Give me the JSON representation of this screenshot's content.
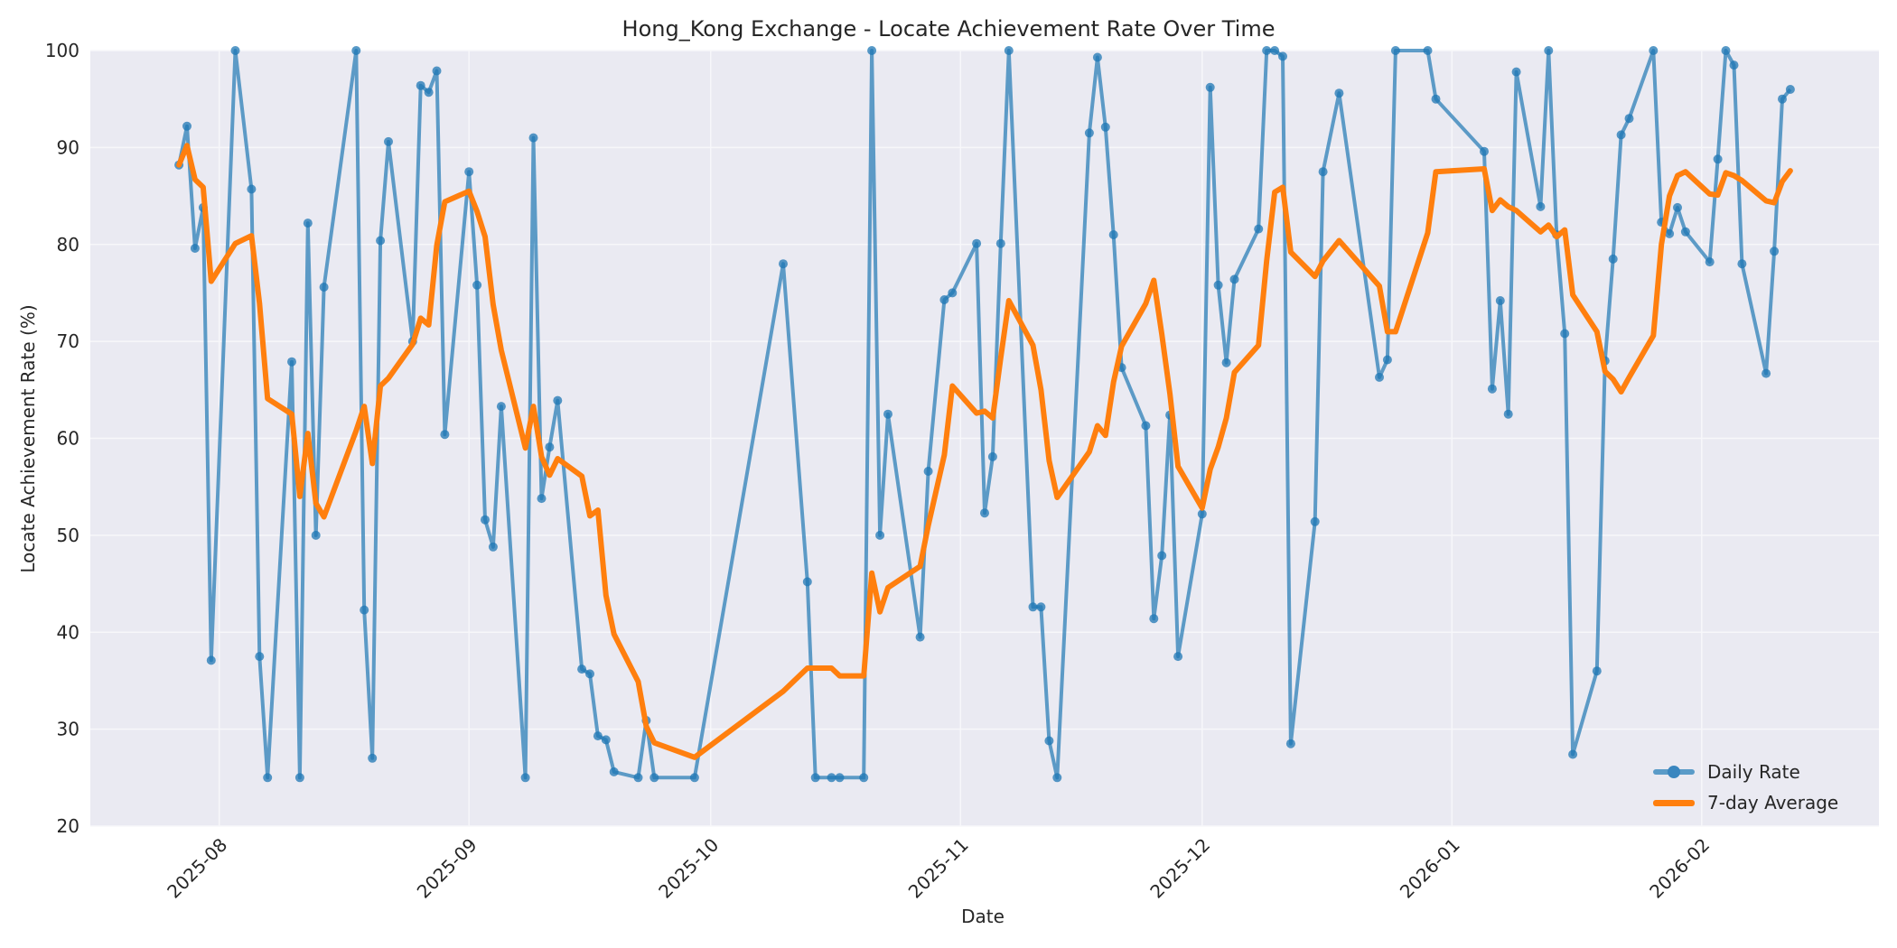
{
  "chart_data": {
    "type": "line",
    "title": "Hong_Kong Exchange - Locate Achievement Rate Over Time",
    "xlabel": "Date",
    "ylabel": "Locate Achievement Rate (%)",
    "ylim": [
      20,
      100
    ],
    "xlim": [
      "2025-07-16",
      "2026-02-23"
    ],
    "grid": true,
    "legend_position": "lower right",
    "x_ticks": [
      "2025-08",
      "2025-09",
      "2025-10",
      "2025-11",
      "2025-12",
      "2026-01",
      "2026-02"
    ],
    "y_ticks": [
      20,
      30,
      40,
      50,
      60,
      70,
      80,
      90,
      100
    ],
    "colors": {
      "daily": "#1f77b4",
      "average": "#ff7f0e",
      "plot_bg": "#eaeaf2",
      "grid": "#f5f5f8"
    },
    "series": [
      {
        "name": "Daily Rate",
        "style": "line+markers",
        "points": [
          [
            "2025-07-27",
            88.2
          ],
          [
            "2025-07-28",
            92.2
          ],
          [
            "2025-07-29",
            79.6
          ],
          [
            "2025-07-30",
            83.8
          ],
          [
            "2025-07-31",
            37.1
          ],
          [
            "2025-08-03",
            100
          ],
          [
            "2025-08-05",
            85.7
          ],
          [
            "2025-08-06",
            37.5
          ],
          [
            "2025-08-07",
            25
          ],
          [
            "2025-08-10",
            67.9
          ],
          [
            "2025-08-11",
            25
          ],
          [
            "2025-08-12",
            82.2
          ],
          [
            "2025-08-13",
            50
          ],
          [
            "2025-08-14",
            75.6
          ],
          [
            "2025-08-18",
            100
          ],
          [
            "2025-08-19",
            42.3
          ],
          [
            "2025-08-20",
            27
          ],
          [
            "2025-08-21",
            80.4
          ],
          [
            "2025-08-22",
            90.6
          ],
          [
            "2025-08-25",
            70
          ],
          [
            "2025-08-26",
            96.4
          ],
          [
            "2025-08-27",
            95.7
          ],
          [
            "2025-08-28",
            97.9
          ],
          [
            "2025-08-29",
            60.4
          ],
          [
            "2025-09-01",
            87.5
          ],
          [
            "2025-09-02",
            75.8
          ],
          [
            "2025-09-03",
            51.6
          ],
          [
            "2025-09-04",
            48.8
          ],
          [
            "2025-09-05",
            63.3
          ],
          [
            "2025-09-08",
            25
          ],
          [
            "2025-09-09",
            91
          ],
          [
            "2025-09-10",
            53.8
          ],
          [
            "2025-09-11",
            59.1
          ],
          [
            "2025-09-12",
            63.9
          ],
          [
            "2025-09-15",
            36.2
          ],
          [
            "2025-09-16",
            35.7
          ],
          [
            "2025-09-17",
            29.3
          ],
          [
            "2025-09-18",
            28.9
          ],
          [
            "2025-09-19",
            25.6
          ],
          [
            "2025-09-22",
            25
          ],
          [
            "2025-09-23",
            30.9
          ],
          [
            "2025-09-24",
            25
          ],
          [
            "2025-09-29",
            25
          ],
          [
            "2025-10-10",
            78
          ],
          [
            "2025-10-13",
            45.2
          ],
          [
            "2025-10-14",
            25
          ],
          [
            "2025-10-16",
            25
          ],
          [
            "2025-10-17",
            25
          ],
          [
            "2025-10-20",
            25
          ],
          [
            "2025-10-21",
            100
          ],
          [
            "2025-10-22",
            50
          ],
          [
            "2025-10-23",
            62.5
          ],
          [
            "2025-10-27",
            39.5
          ],
          [
            "2025-10-28",
            56.6
          ],
          [
            "2025-10-30",
            74.3
          ],
          [
            "2025-10-31",
            75
          ],
          [
            "2025-11-03",
            80.1
          ],
          [
            "2025-11-04",
            52.3
          ],
          [
            "2025-11-05",
            58.1
          ],
          [
            "2025-11-06",
            80.1
          ],
          [
            "2025-11-07",
            100
          ],
          [
            "2025-11-10",
            42.6
          ],
          [
            "2025-11-11",
            42.6
          ],
          [
            "2025-11-12",
            28.8
          ],
          [
            "2025-11-13",
            25
          ],
          [
            "2025-11-17",
            91.5
          ],
          [
            "2025-11-18",
            99.3
          ],
          [
            "2025-11-19",
            92.1
          ],
          [
            "2025-11-20",
            81
          ],
          [
            "2025-11-21",
            67.3
          ],
          [
            "2025-11-24",
            61.3
          ],
          [
            "2025-11-25",
            41.4
          ],
          [
            "2025-11-26",
            47.9
          ],
          [
            "2025-11-27",
            62.4
          ],
          [
            "2025-11-28",
            37.5
          ],
          [
            "2025-12-01",
            52.2
          ],
          [
            "2025-12-02",
            96.2
          ],
          [
            "2025-12-03",
            75.8
          ],
          [
            "2025-12-04",
            67.8
          ],
          [
            "2025-12-05",
            76.4
          ],
          [
            "2025-12-08",
            81.6
          ],
          [
            "2025-12-09",
            100
          ],
          [
            "2025-12-10",
            100
          ],
          [
            "2025-12-11",
            99.4
          ],
          [
            "2025-12-12",
            28.5
          ],
          [
            "2025-12-15",
            51.4
          ],
          [
            "2025-12-16",
            87.5
          ],
          [
            "2025-12-18",
            95.6
          ],
          [
            "2025-12-23",
            66.3
          ],
          [
            "2025-12-24",
            68.1
          ],
          [
            "2025-12-25",
            100
          ],
          [
            "2025-12-29",
            100
          ],
          [
            "2025-12-30",
            95
          ],
          [
            "2026-01-05",
            89.6
          ],
          [
            "2026-01-06",
            65.1
          ],
          [
            "2026-01-07",
            74.2
          ],
          [
            "2026-01-08",
            62.5
          ],
          [
            "2026-01-09",
            97.8
          ],
          [
            "2026-01-12",
            83.9
          ],
          [
            "2026-01-13",
            100
          ],
          [
            "2026-01-14",
            81
          ],
          [
            "2026-01-15",
            70.8
          ],
          [
            "2026-01-16",
            27.4
          ],
          [
            "2026-01-19",
            36
          ],
          [
            "2026-01-20",
            68
          ],
          [
            "2026-01-21",
            78.5
          ],
          [
            "2026-01-22",
            91.3
          ],
          [
            "2026-01-23",
            93
          ],
          [
            "2026-01-26",
            100
          ],
          [
            "2026-01-27",
            82.3
          ],
          [
            "2026-01-28",
            81.1
          ],
          [
            "2026-01-29",
            83.8
          ],
          [
            "2026-01-30",
            81.3
          ],
          [
            "2026-02-02",
            78.2
          ],
          [
            "2026-02-03",
            88.8
          ],
          [
            "2026-02-04",
            100
          ],
          [
            "2026-02-05",
            98.5
          ],
          [
            "2026-02-06",
            78
          ],
          [
            "2026-02-09",
            66.7
          ],
          [
            "2026-02-10",
            79.3
          ],
          [
            "2026-02-11",
            95
          ],
          [
            "2026-02-12",
            96
          ]
        ]
      },
      {
        "name": "7-day Average",
        "style": "line",
        "points": [
          [
            "2025-07-27",
            88.2
          ],
          [
            "2025-07-28",
            90.2
          ],
          [
            "2025-07-29",
            86.7
          ],
          [
            "2025-07-30",
            85.9
          ],
          [
            "2025-07-31",
            76.2
          ],
          [
            "2025-08-03",
            80.1
          ],
          [
            "2025-08-05",
            80.9
          ],
          [
            "2025-08-06",
            73.9
          ],
          [
            "2025-08-07",
            64.1
          ],
          [
            "2025-08-10",
            62.5
          ],
          [
            "2025-08-11",
            54
          ],
          [
            "2025-08-12",
            60.5
          ],
          [
            "2025-08-13",
            53.3
          ],
          [
            "2025-08-14",
            51.9
          ],
          [
            "2025-08-18",
            60.8
          ],
          [
            "2025-08-19",
            63.3
          ],
          [
            "2025-08-20",
            57.4
          ],
          [
            "2025-08-21",
            65.4
          ],
          [
            "2025-08-22",
            66.2
          ],
          [
            "2025-08-25",
            69.7
          ],
          [
            "2025-08-26",
            72.4
          ],
          [
            "2025-08-27",
            71.7
          ],
          [
            "2025-08-28",
            79.9
          ],
          [
            "2025-08-29",
            84.4
          ],
          [
            "2025-09-01",
            85.5
          ],
          [
            "2025-09-02",
            83.4
          ],
          [
            "2025-09-03",
            80.8
          ],
          [
            "2025-09-04",
            73.8
          ],
          [
            "2025-09-05",
            69.1
          ],
          [
            "2025-09-08",
            59
          ],
          [
            "2025-09-09",
            63.3
          ],
          [
            "2025-09-10",
            58.1
          ],
          [
            "2025-09-11",
            56.2
          ],
          [
            "2025-09-12",
            57.9
          ],
          [
            "2025-09-15",
            56.1
          ],
          [
            "2025-09-16",
            52
          ],
          [
            "2025-09-17",
            52.6
          ],
          [
            "2025-09-18",
            43.8
          ],
          [
            "2025-09-19",
            39.8
          ],
          [
            "2025-09-22",
            34.9
          ],
          [
            "2025-09-23",
            30.3
          ],
          [
            "2025-09-24",
            28.6
          ],
          [
            "2025-09-29",
            27.1
          ],
          [
            "2025-10-10",
            33.9
          ],
          [
            "2025-10-13",
            36.3
          ],
          [
            "2025-10-14",
            36.3
          ],
          [
            "2025-10-16",
            36.3
          ],
          [
            "2025-10-17",
            35.5
          ],
          [
            "2025-10-20",
            35.5
          ],
          [
            "2025-10-21",
            46.1
          ],
          [
            "2025-10-22",
            42.1
          ],
          [
            "2025-10-23",
            44.6
          ],
          [
            "2025-10-27",
            46.8
          ],
          [
            "2025-10-28",
            51
          ],
          [
            "2025-10-30",
            58.3
          ],
          [
            "2025-10-31",
            65.4
          ],
          [
            "2025-11-03",
            62.6
          ],
          [
            "2025-11-04",
            62.8
          ],
          [
            "2025-11-05",
            62.1
          ],
          [
            "2025-11-06",
            68.3
          ],
          [
            "2025-11-07",
            74.2
          ],
          [
            "2025-11-10",
            69.6
          ],
          [
            "2025-11-11",
            65
          ],
          [
            "2025-11-12",
            57.7
          ],
          [
            "2025-11-13",
            53.9
          ],
          [
            "2025-11-17",
            58.6
          ],
          [
            "2025-11-18",
            61.3
          ],
          [
            "2025-11-19",
            60.3
          ],
          [
            "2025-11-20",
            65.8
          ],
          [
            "2025-11-21",
            69.5
          ],
          [
            "2025-11-24",
            73.9
          ],
          [
            "2025-11-25",
            76.3
          ],
          [
            "2025-11-26",
            70.7
          ],
          [
            "2025-11-27",
            64.6
          ],
          [
            "2025-11-28",
            57.1
          ],
          [
            "2025-12-01",
            52.8
          ],
          [
            "2025-12-02",
            56.8
          ],
          [
            "2025-12-03",
            59.1
          ],
          [
            "2025-12-04",
            62.1
          ],
          [
            "2025-12-05",
            66.8
          ],
          [
            "2025-12-08",
            69.6
          ],
          [
            "2025-12-09",
            78.3
          ],
          [
            "2025-12-10",
            85.4
          ],
          [
            "2025-12-11",
            85.9
          ],
          [
            "2025-12-12",
            79.2
          ],
          [
            "2025-12-15",
            76.7
          ],
          [
            "2025-12-16",
            78.3
          ],
          [
            "2025-12-18",
            80.4
          ],
          [
            "2025-12-23",
            75.7
          ],
          [
            "2025-12-24",
            71
          ],
          [
            "2025-12-25",
            71
          ],
          [
            "2025-12-29",
            81.2
          ],
          [
            "2025-12-30",
            87.5
          ],
          [
            "2026-01-05",
            87.8
          ],
          [
            "2026-01-06",
            83.5
          ],
          [
            "2026-01-07",
            84.6
          ],
          [
            "2026-01-08",
            83.9
          ],
          [
            "2026-01-09",
            83.5
          ],
          [
            "2026-01-12",
            81.3
          ],
          [
            "2026-01-13",
            82
          ],
          [
            "2026-01-14",
            80.8
          ],
          [
            "2026-01-15",
            81.5
          ],
          [
            "2026-01-16",
            74.8
          ],
          [
            "2026-01-19",
            71
          ],
          [
            "2026-01-20",
            66.9
          ],
          [
            "2026-01-21",
            66.1
          ],
          [
            "2026-01-22",
            64.8
          ],
          [
            "2026-01-23",
            66.3
          ],
          [
            "2026-01-26",
            70.6
          ],
          [
            "2026-01-27",
            80
          ],
          [
            "2026-01-28",
            85
          ],
          [
            "2026-01-29",
            87.1
          ],
          [
            "2026-01-30",
            87.5
          ],
          [
            "2026-02-02",
            85.2
          ],
          [
            "2026-02-03",
            85.1
          ],
          [
            "2026-02-04",
            87.4
          ],
          [
            "2026-02-05",
            87.1
          ],
          [
            "2026-02-06",
            86.6
          ],
          [
            "2026-02-09",
            84.5
          ],
          [
            "2026-02-10",
            84.3
          ],
          [
            "2026-02-11",
            86.5
          ],
          [
            "2026-02-12",
            87.6
          ]
        ]
      }
    ]
  }
}
